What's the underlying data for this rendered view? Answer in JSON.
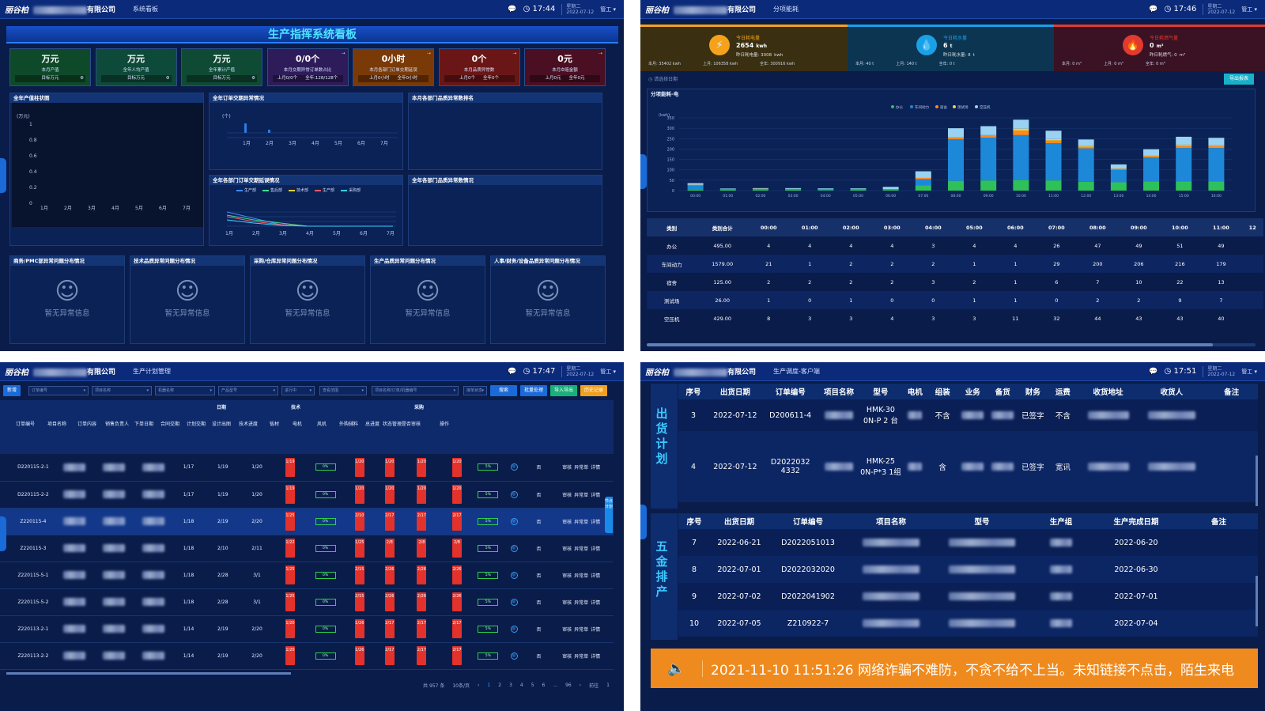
{
  "common": {
    "logo": "丽谷柏",
    "company_suffix": "有限公司",
    "user": "管工",
    "weekday": "星期二",
    "date": "2022-07-12"
  },
  "q1": {
    "menu": "系统看板",
    "time": "17:44",
    "title": "生产指挥系统看板",
    "kpis": [
      {
        "value": "万元",
        "label": "本月产值",
        "bottom": "目标万元",
        "color": "#0e4a2a"
      },
      {
        "value": "万元",
        "label": "全年人均产值",
        "bottom": "目标万元",
        "color": "#0e4a3a"
      },
      {
        "value": "万元",
        "label": "全年累计产值",
        "bottom": "目标万元",
        "color": "#0f4a35"
      },
      {
        "value": "0/0个",
        "label": "本月交期异常订单数占比",
        "bottom_left": "上月0/0个",
        "bottom_right": "全年:128/128个",
        "color": "#2e1c5a"
      },
      {
        "value": "0小时",
        "label": "本月各部门订单交期延误",
        "bottom_left": "上月0小时",
        "bottom_right": "全年0小时",
        "color": "#7a3a08"
      },
      {
        "value": "0个",
        "label": "本月品质异常数",
        "bottom_left": "上月0个",
        "bottom_right": "全年0个",
        "color": "#6a1616"
      },
      {
        "value": "0元",
        "label": "本月호赔金额",
        "bottom_left": "上月0元",
        "bottom_right": "全年0元",
        "color": "#4a0f22"
      }
    ],
    "sec_bar": "全年产值柱状图",
    "sec_order": "全年订单交期异常情况",
    "sec_rank": "本月各部门品质异常数排名",
    "sec_dept": "全年各部门订单交期延误情况",
    "sec_dept_q": "全年各部门品质异常数情况",
    "bar_unit": "(万元)",
    "bar_yticks": [
      "1",
      "0.8",
      "0.6",
      "0.4",
      "0.2",
      "0"
    ],
    "months": [
      "1月",
      "2月",
      "3月",
      "4月",
      "5月",
      "6月",
      "7月"
    ],
    "order_unit": "(个)",
    "legend": [
      {
        "name": "生产部",
        "color": "#3d8bff"
      },
      {
        "name": "售后部",
        "color": "#3fe08c"
      },
      {
        "name": "技术部",
        "color": "#ffcc33"
      },
      {
        "name": "生产部",
        "color": "#ff5a66"
      },
      {
        "name": "采购部",
        "color": "#33d0ff"
      }
    ],
    "bottom_secs": [
      "商务/PMC部异常问题分布情况",
      "技术品质异常问题分布情况",
      "采购/仓库异常问题分布情况",
      "生产品质异常问题分布情况",
      "人事/财务/设备品质异常问题分布情况"
    ],
    "no_data": "暂无异常信息"
  },
  "q2": {
    "menu": "分项能耗",
    "time": "17:46",
    "energy": [
      {
        "icon": "⚡",
        "title": "今日耗电量",
        "value": "2654",
        "unit": "kwh",
        "sub": "昨日耗电量: 3008",
        "sub_unit": "kwh",
        "foot": [
          "本月: 35402 kwh",
          "上月: 106358 kwh",
          "全年: 300916 kwh"
        ],
        "bg": "#3a2f10",
        "accent": "#f5a21b"
      },
      {
        "icon": "💧",
        "title": "今日耗水量",
        "value": "6",
        "unit": "t",
        "sub": "昨日耗水量: 8",
        "sub_unit": "t",
        "foot": [
          "本月: 40 t",
          "上月: 140 t",
          "全年: 0 t"
        ],
        "bg": "#0c3552",
        "accent": "#1aa0e6"
      },
      {
        "icon": "🔥",
        "title": "今日耗燃气量",
        "value": "0",
        "unit": "m³",
        "sub": "昨日耗燃气: 0",
        "sub_unit": "m³",
        "foot": [
          "本月: 0 m³",
          "上月: 0 m³",
          "全年: 0 m³"
        ],
        "bg": "#3a1224",
        "accent": "#e23a2e"
      }
    ],
    "date_ph": "请选择日期",
    "export": "导出报表",
    "chart_title": "分项能耗-电",
    "unit": "(kwh)",
    "chart_data": {
      "type": "bar",
      "title": "分项能耗-电",
      "ylabel": "(kwh)",
      "ylim": [
        0,
        350
      ],
      "yticks": [
        "350",
        "300",
        "250",
        "200",
        "150",
        "100",
        "50",
        "0"
      ],
      "categories": [
        "00:00",
        "01:00",
        "02:00",
        "03:00",
        "04:00",
        "05:00",
        "06:00",
        "07:00",
        "08:00",
        "09:00",
        "10:00",
        "11:00",
        "12:00",
        "13:00",
        "14:00",
        "15:00",
        "16:00"
      ],
      "series": [
        {
          "name": "办公",
          "color": "#2ec15a",
          "values": [
            4,
            4,
            4,
            4,
            3,
            4,
            4,
            26,
            47,
            49,
            51,
            49,
            43,
            40,
            44,
            45,
            45
          ]
        },
        {
          "name": "车间动力",
          "color": "#1e88d8",
          "values": [
            21,
            1,
            2,
            2,
            2,
            1,
            1,
            29,
            200,
            206,
            216,
            179,
            160,
            60,
            115,
            160,
            160
          ]
        },
        {
          "name": "宿舍",
          "color": "#ff8a22",
          "values": [
            2,
            2,
            2,
            2,
            3,
            2,
            1,
            6,
            7,
            10,
            22,
            13,
            8,
            4,
            7,
            11,
            9
          ]
        },
        {
          "name": "测试场",
          "color": "#f2d43a",
          "values": [
            1,
            0,
            1,
            0,
            0,
            1,
            1,
            0,
            2,
            2,
            9,
            7,
            3,
            2,
            3,
            5,
            4
          ]
        },
        {
          "name": "空压机",
          "color": "#9ad2f2",
          "values": [
            8,
            3,
            3,
            4,
            3,
            3,
            11,
            32,
            44,
            43,
            43,
            40,
            32,
            20,
            30,
            38,
            36
          ]
        }
      ]
    },
    "table": {
      "headers": [
        "类别",
        "类别合计",
        "00:00",
        "01:00",
        "02:00",
        "03:00",
        "04:00",
        "05:00",
        "06:00",
        "07:00",
        "08:00",
        "09:00",
        "10:00",
        "11:00",
        "12"
      ],
      "rows": [
        [
          "办公",
          "495.00",
          "4",
          "4",
          "4",
          "4",
          "3",
          "4",
          "4",
          "26",
          "47",
          "49",
          "51",
          "49",
          ""
        ],
        [
          "车间动力",
          "1579.00",
          "21",
          "1",
          "2",
          "2",
          "2",
          "1",
          "1",
          "29",
          "200",
          "206",
          "216",
          "179",
          ""
        ],
        [
          "宿舍",
          "125.00",
          "2",
          "2",
          "2",
          "2",
          "3",
          "2",
          "1",
          "6",
          "7",
          "10",
          "22",
          "13",
          ""
        ],
        [
          "测试场",
          "26.00",
          "1",
          "0",
          "1",
          "0",
          "0",
          "1",
          "1",
          "0",
          "2",
          "2",
          "9",
          "7",
          ""
        ],
        [
          "空压机",
          "429.00",
          "8",
          "3",
          "3",
          "4",
          "3",
          "3",
          "11",
          "32",
          "44",
          "43",
          "43",
          "40",
          ""
        ]
      ]
    }
  },
  "q3": {
    "menu": "生产计划管理",
    "time": "17:47",
    "filters": [
      "订单编号",
      "项目名称",
      "机器名称",
      "产品型号",
      "进行中",
      "查看范围",
      "项目名称/订单/机器编号",
      "接单状态"
    ],
    "buttons": [
      {
        "label": "搜索",
        "color": "#1a6ad8"
      },
      {
        "label": "批量处理",
        "color": "#1a6ad8"
      },
      {
        "label": "导入导出",
        "color": "#18b07a"
      },
      {
        "label": "历史记录",
        "color": "#f0a020"
      }
    ],
    "new": "新增",
    "group_heads": [
      "日期",
      "技术",
      "采购"
    ],
    "heads": [
      "订单编号",
      "项目名称",
      "订单内容",
      "销售负责人",
      "下单日期",
      "合同交期",
      "计划交期",
      "设计出图",
      "技术进度",
      "钣材",
      "电机",
      "风机",
      "外购辅料",
      "总进度",
      "状态管理",
      "是否审核",
      "操作"
    ],
    "rows": [
      {
        "id": "D220115-2-1",
        "xd": "1/17",
        "ht": "1/19",
        "jh": "1/20",
        "sj": "1/19",
        "bc": "1/20",
        "dj": "1/20",
        "fj": "1/20",
        "wg": "1/20"
      },
      {
        "id": "D220115-2-2",
        "xd": "1/17",
        "ht": "1/19",
        "jh": "1/20",
        "sj": "1/19",
        "bc": "1/20",
        "dj": "1/20",
        "fj": "1/20",
        "wg": "1/20"
      },
      {
        "id": "Z220115-4",
        "xd": "1/18",
        "ht": "2/19",
        "jh": "2/20",
        "sj": "1/25",
        "bc": "2/10",
        "dj": "2/17",
        "fj": "2/17",
        "wg": "2/17"
      },
      {
        "id": "Z220115-3",
        "xd": "1/18",
        "ht": "2/10",
        "jh": "2/11",
        "sj": "1/22",
        "bc": "1/25",
        "dj": "2/8",
        "fj": "2/8",
        "wg": "2/8"
      },
      {
        "id": "Z220115-5-1",
        "xd": "1/18",
        "ht": "2/28",
        "jh": "3/1",
        "sj": "1/25",
        "bc": "2/15",
        "dj": "2/26",
        "fj": "2/26",
        "wg": "2/26"
      },
      {
        "id": "Z220115-5-2",
        "xd": "1/18",
        "ht": "2/28",
        "jh": "3/1",
        "sj": "1/25",
        "bc": "2/15",
        "dj": "2/26",
        "fj": "2/26",
        "wg": "2/26"
      },
      {
        "id": "Z220113-2-1",
        "xd": "1/14",
        "ht": "2/19",
        "jh": "2/20",
        "sj": "1/20",
        "bc": "1/26",
        "dj": "2/17",
        "fj": "2/17",
        "wg": "2/17"
      },
      {
        "id": "Z220113-2-2",
        "xd": "1/14",
        "ht": "2/19",
        "jh": "2/20",
        "sj": "1/20",
        "bc": "1/26",
        "dj": "2/17",
        "fj": "2/17",
        "wg": "2/17"
      }
    ],
    "row_values": {
      "tech": "0%",
      "total": "5%",
      "audit": "否",
      "op_audit": "审核",
      "op_error": "异常单",
      "op_detail": "详情"
    },
    "side_tab": "节点计划",
    "pager": {
      "total": "共 957 条",
      "size": "10条/页",
      "pages": [
        "1",
        "2",
        "3",
        "4",
        "5",
        "6",
        "...",
        "96"
      ],
      "goto_label": "前往",
      "goto_value": "1"
    }
  },
  "q4": {
    "menu": "生产调度-客户端",
    "time": "17:51",
    "label1": "出货计划",
    "label2": "五金排产",
    "ship_heads": [
      "序号",
      "出货日期",
      "订单编号",
      "项目名称",
      "型号",
      "电机",
      "组装",
      "业务",
      "备货",
      "财务",
      "运费",
      "收货地址",
      "收货人",
      "备注"
    ],
    "ship_rows": [
      {
        "no": "3",
        "date": "2022-07-12",
        "order": "D200611-4",
        "model": "HMK-30 0N-P 2 台",
        "asm": "不含",
        "fin": "已签字",
        "fee": "不含"
      },
      {
        "no": "4",
        "date": "2022-07-12",
        "order": "D2022032 4332",
        "model": "HMK-25 0N-P*3 1组",
        "asm": "含",
        "fin": "已签字",
        "fee": "宽讯"
      }
    ],
    "hw_heads": [
      "序号",
      "出货日期",
      "订单编号",
      "项目名称",
      "型号",
      "生产组",
      "生产完成日期",
      "备注"
    ],
    "hw_rows": [
      {
        "no": "7",
        "date": "2022-06-21",
        "order": "D2022051013",
        "done": "2022-06-20"
      },
      {
        "no": "8",
        "date": "2022-07-01",
        "order": "D2022032020",
        "done": "2022-06-30"
      },
      {
        "no": "9",
        "date": "2022-07-02",
        "order": "D2022041902",
        "done": "2022-07-01"
      },
      {
        "no": "10",
        "date": "2022-07-05",
        "order": "Z210922-7",
        "done": "2022-07-04"
      }
    ],
    "ticker": "2021-11-10 11:51:26  网络诈骗不难防，不贪不给不上当。未知链接不点击，陌生来电"
  }
}
